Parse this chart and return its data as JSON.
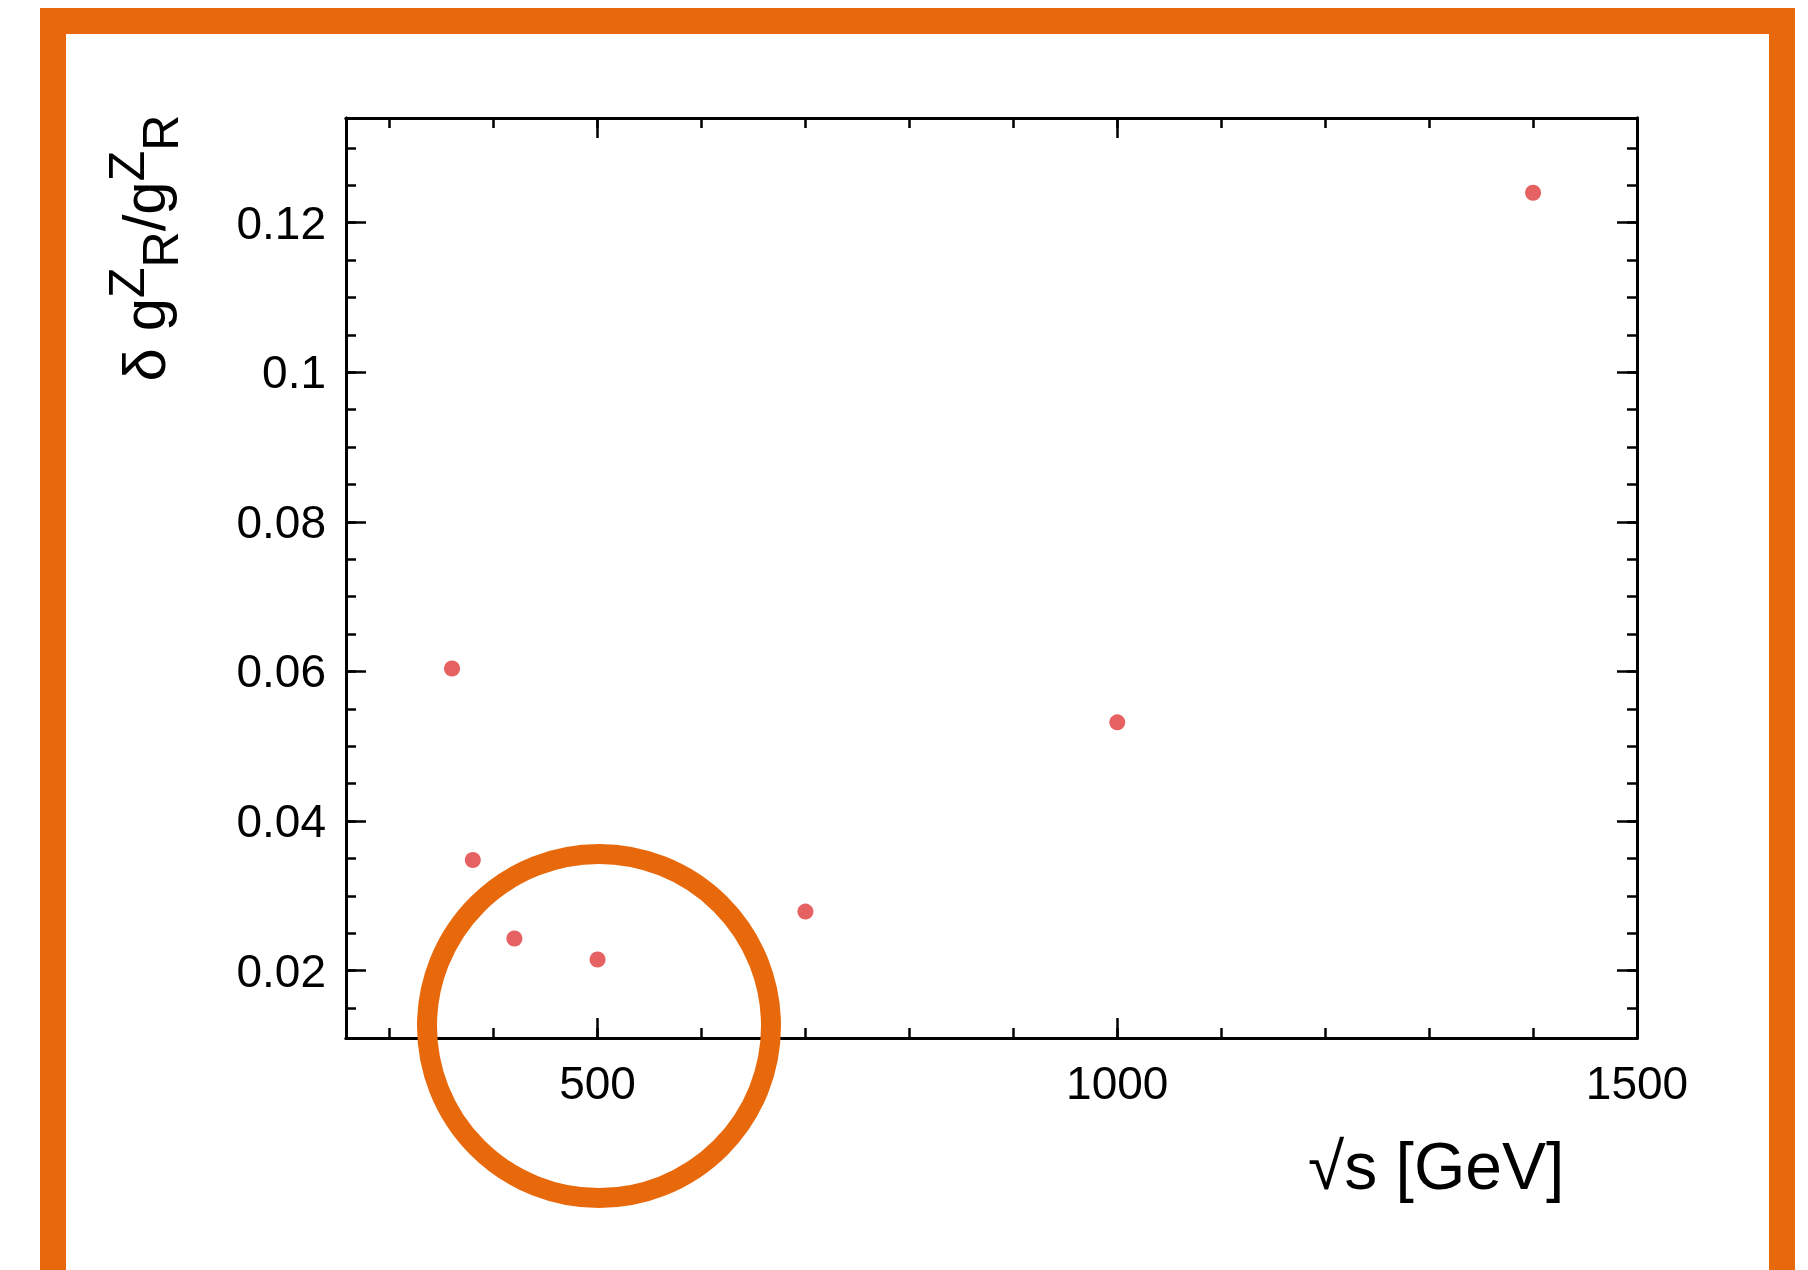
{
  "chart_data": {
    "type": "scatter",
    "xlabel": "√s [GeV]",
    "ylabel": "δ g$^{Z}$$_{R}$/g$^{Z}$$_{R}$",
    "x": [
      360,
      380,
      420,
      500,
      700,
      1000,
      1400
    ],
    "series": [
      {
        "color": "#e03a3a",
        "values": [
          0.0604,
          0.0348,
          0.0243,
          0.0215,
          0.0279,
          0.0532,
          0.124
        ]
      }
    ],
    "xlim": [
      258,
      1500
    ],
    "xticks": [
      500,
      1000,
      1500
    ],
    "ylim": [
      0.011,
      0.134
    ],
    "yticks": [
      0.02,
      0.04,
      0.06,
      0.08,
      0.1,
      0.12
    ],
    "marker": "circle"
  }
}
